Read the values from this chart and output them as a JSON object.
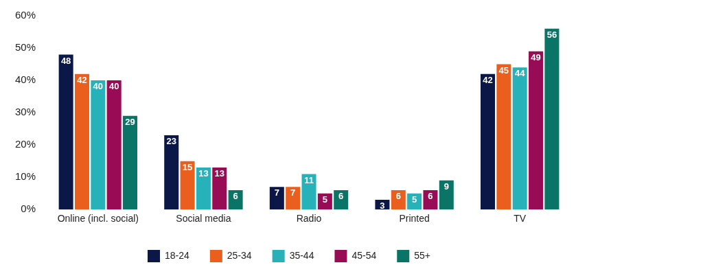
{
  "chart_data": {
    "type": "bar",
    "categories": [
      "Online (incl. social)",
      "Social media",
      "Radio",
      "Printed",
      "TV"
    ],
    "series": [
      {
        "name": "18-24",
        "color": "#0b1847",
        "values": [
          48,
          23,
          7,
          3,
          42
        ]
      },
      {
        "name": "25-34",
        "color": "#eb5f1e",
        "values": [
          42,
          15,
          7,
          6,
          45
        ]
      },
      {
        "name": "35-44",
        "color": "#27b1b8",
        "values": [
          40,
          13,
          11,
          5,
          44
        ]
      },
      {
        "name": "45-54",
        "color": "#980b55",
        "values": [
          40,
          13,
          5,
          6,
          49
        ]
      },
      {
        "name": "55+",
        "color": "#0a7566",
        "values": [
          29,
          6,
          6,
          9,
          56
        ]
      }
    ],
    "ylim": [
      0,
      60
    ],
    "yticks": [
      {
        "value": 0,
        "label": "0%"
      },
      {
        "value": 10,
        "label": "10%"
      },
      {
        "value": 20,
        "label": "20%"
      },
      {
        "value": 30,
        "label": "30%"
      },
      {
        "value": 40,
        "label": "40%"
      },
      {
        "value": 50,
        "label": "50%"
      },
      {
        "value": 60,
        "label": "60%"
      }
    ],
    "data_labels": true,
    "grid": false,
    "legend": "bottom"
  }
}
